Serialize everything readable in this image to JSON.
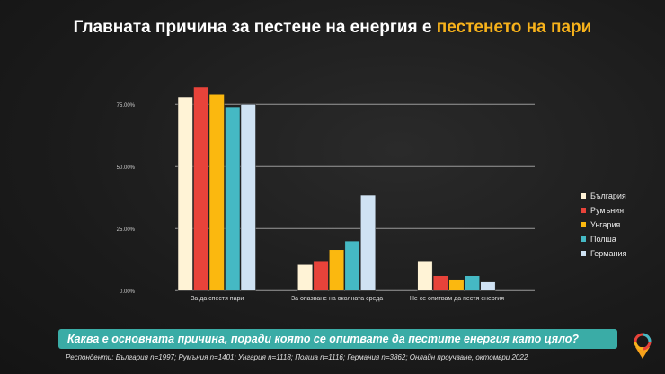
{
  "title": {
    "main": "Главната причина за пестене на енергия е ",
    "highlight": "пестенето на пари"
  },
  "question": "Каква е основната причина, поради която се опитвате да пестите енергия като цяло?",
  "note": "Респонденти: България n=1997; Румъния n=1401; Унгария n=1118; Полша n=1116; Германия n=3862; Онлайн проучване, октомври 2022",
  "colors": {
    "accent": "#f7b21b",
    "question_bg": "#3aaca6"
  },
  "chart_data": {
    "type": "bar",
    "categories": [
      "За да спестя пари",
      "За опазване на околната среда",
      "Не се опитвам да пестя енергия"
    ],
    "series": [
      {
        "name": "България",
        "color": "#fff3d6",
        "values": [
          78,
          10.5,
          12
        ]
      },
      {
        "name": "Румъния",
        "color": "#e8433a",
        "values": [
          82,
          12,
          6
        ]
      },
      {
        "name": "Унгария",
        "color": "#fbb80f",
        "values": [
          79,
          16.5,
          4.5
        ]
      },
      {
        "name": "Полша",
        "color": "#45b9c4",
        "values": [
          74,
          20,
          6
        ]
      },
      {
        "name": "Германия",
        "color": "#cfe2f3",
        "values": [
          75,
          38.5,
          3.5
        ]
      }
    ],
    "yticks": [
      "0.00%",
      "25.00%",
      "50.00%",
      "75.00%"
    ],
    "ytick_values": [
      0,
      25,
      50,
      75
    ],
    "ylim": [
      0,
      85
    ],
    "grid": true,
    "legend": "right"
  }
}
